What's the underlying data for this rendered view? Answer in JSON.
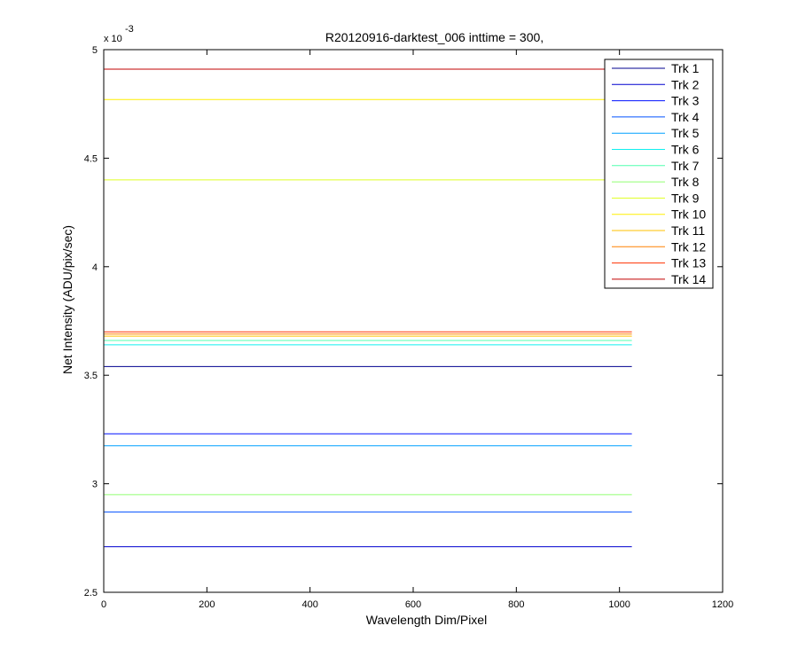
{
  "chart_data": {
    "type": "line",
    "title": "R20120916-darktest_006 inttime = 300,",
    "xlabel": "Wavelength Dim/Pixel",
    "ylabel": "Net Intensity (ADU/pix/sec)",
    "xlim": [
      0,
      1200
    ],
    "ylim": [
      2.5,
      5
    ],
    "xticks": [
      0,
      200,
      400,
      600,
      800,
      1000,
      1200
    ],
    "xtick_labels": [
      "0",
      "200",
      "400",
      "600",
      "800",
      "1000",
      "1200"
    ],
    "yticks": [
      2.5,
      3,
      3.5,
      4,
      4.5,
      5
    ],
    "ytick_labels": [
      "2.5",
      "3",
      "3.5",
      "4",
      "4.5",
      "5"
    ],
    "y_multiplier": {
      "base": "x 10",
      "exponent": "-3"
    },
    "x_range": [
      1,
      1024
    ],
    "legend_position": "top-right",
    "grid": false,
    "series": [
      {
        "name": "Trk 1",
        "value": 3.54,
        "color": "#00008F"
      },
      {
        "name": "Trk 2",
        "value": 2.71,
        "color": "#0000CF"
      },
      {
        "name": "Trk 3",
        "value": 3.23,
        "color": "#0010FF"
      },
      {
        "name": "Trk 4",
        "value": 2.87,
        "color": "#0050FF"
      },
      {
        "name": "Trk 5",
        "value": 3.175,
        "color": "#00A0FF"
      },
      {
        "name": "Trk 6",
        "value": 3.64,
        "color": "#10EFEF"
      },
      {
        "name": "Trk 7",
        "value": 3.66,
        "color": "#50FFAF"
      },
      {
        "name": "Trk 8",
        "value": 2.95,
        "color": "#90FF70"
      },
      {
        "name": "Trk 9",
        "value": 4.4,
        "color": "#DFFF20"
      },
      {
        "name": "Trk 10",
        "value": 4.77,
        "color": "#FFEF00"
      },
      {
        "name": "Trk 11",
        "value": 3.68,
        "color": "#FFC000"
      },
      {
        "name": "Trk 12",
        "value": 3.69,
        "color": "#FF8000"
      },
      {
        "name": "Trk 13",
        "value": 3.7,
        "color": "#FF3000"
      },
      {
        "name": "Trk 14",
        "value": 4.91,
        "color": "#C00000"
      }
    ]
  }
}
